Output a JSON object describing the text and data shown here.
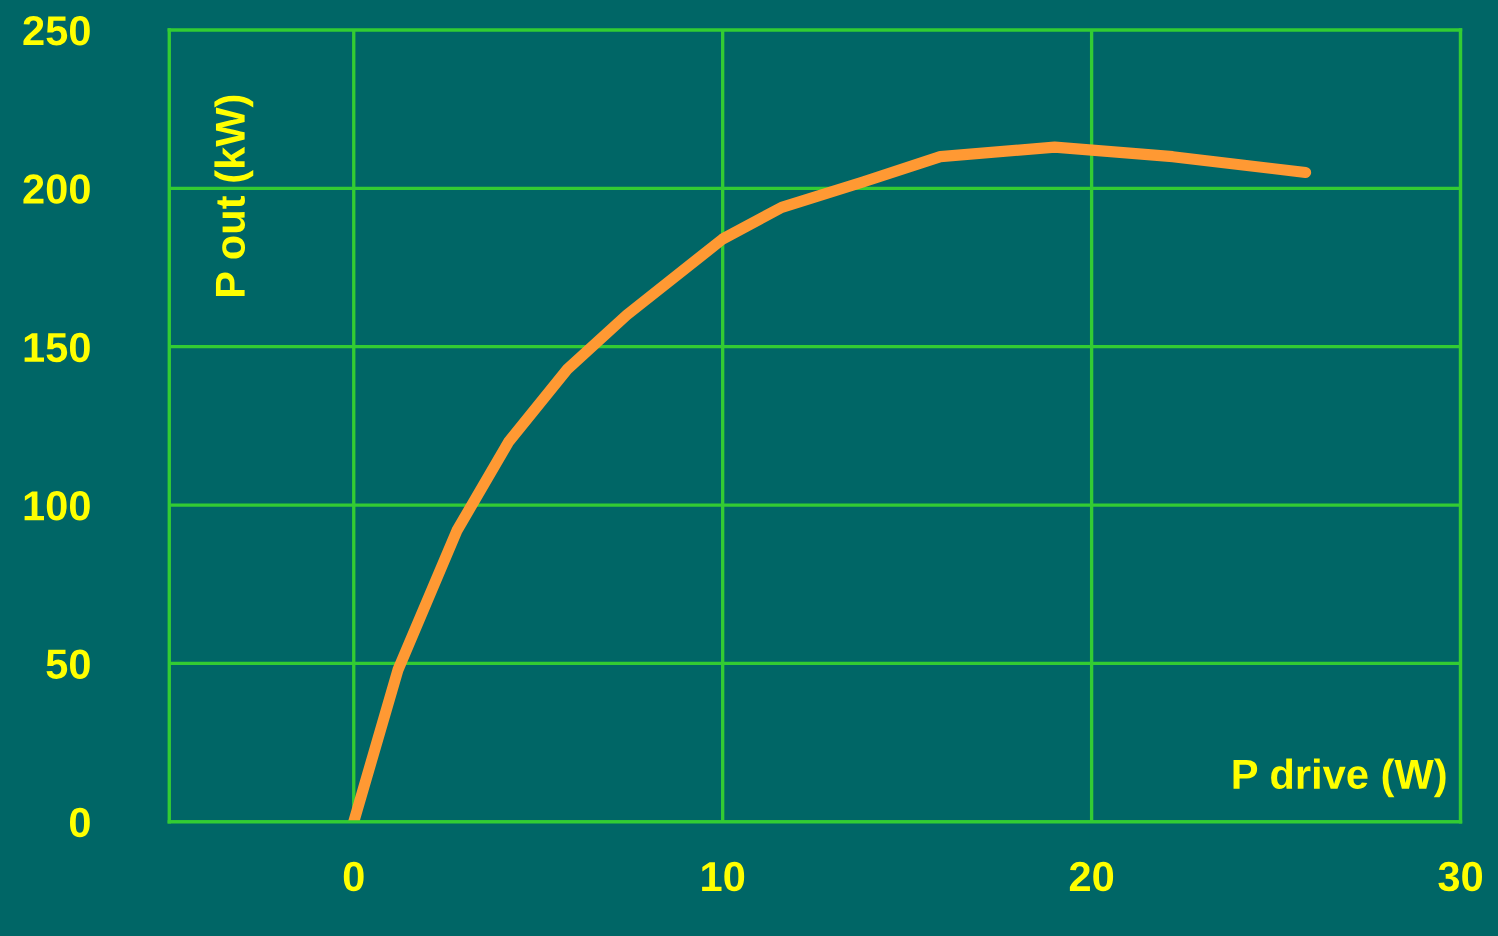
{
  "chart_data": {
    "type": "line",
    "xlabel": "P drive (W)",
    "ylabel": "P out (kW)",
    "x": [
      0,
      1.2,
      2.8,
      4.2,
      5.8,
      7.4,
      10,
      11.6,
      13.8,
      15.9,
      19,
      22.2,
      25.8
    ],
    "series": [
      {
        "color": "#ff9933",
        "values": [
          0,
          48,
          92,
          120,
          143,
          160,
          184,
          194,
          202,
          210,
          213,
          210,
          205
        ]
      }
    ],
    "xlim": [
      -5,
      30
    ],
    "xticks": [
      0,
      10,
      20,
      30
    ],
    "ylim": [
      0,
      250
    ],
    "yticks": [
      0,
      50,
      100,
      150,
      200,
      250
    ],
    "grid": true,
    "legend": false,
    "marker": "none",
    "line_style": "solid"
  }
}
